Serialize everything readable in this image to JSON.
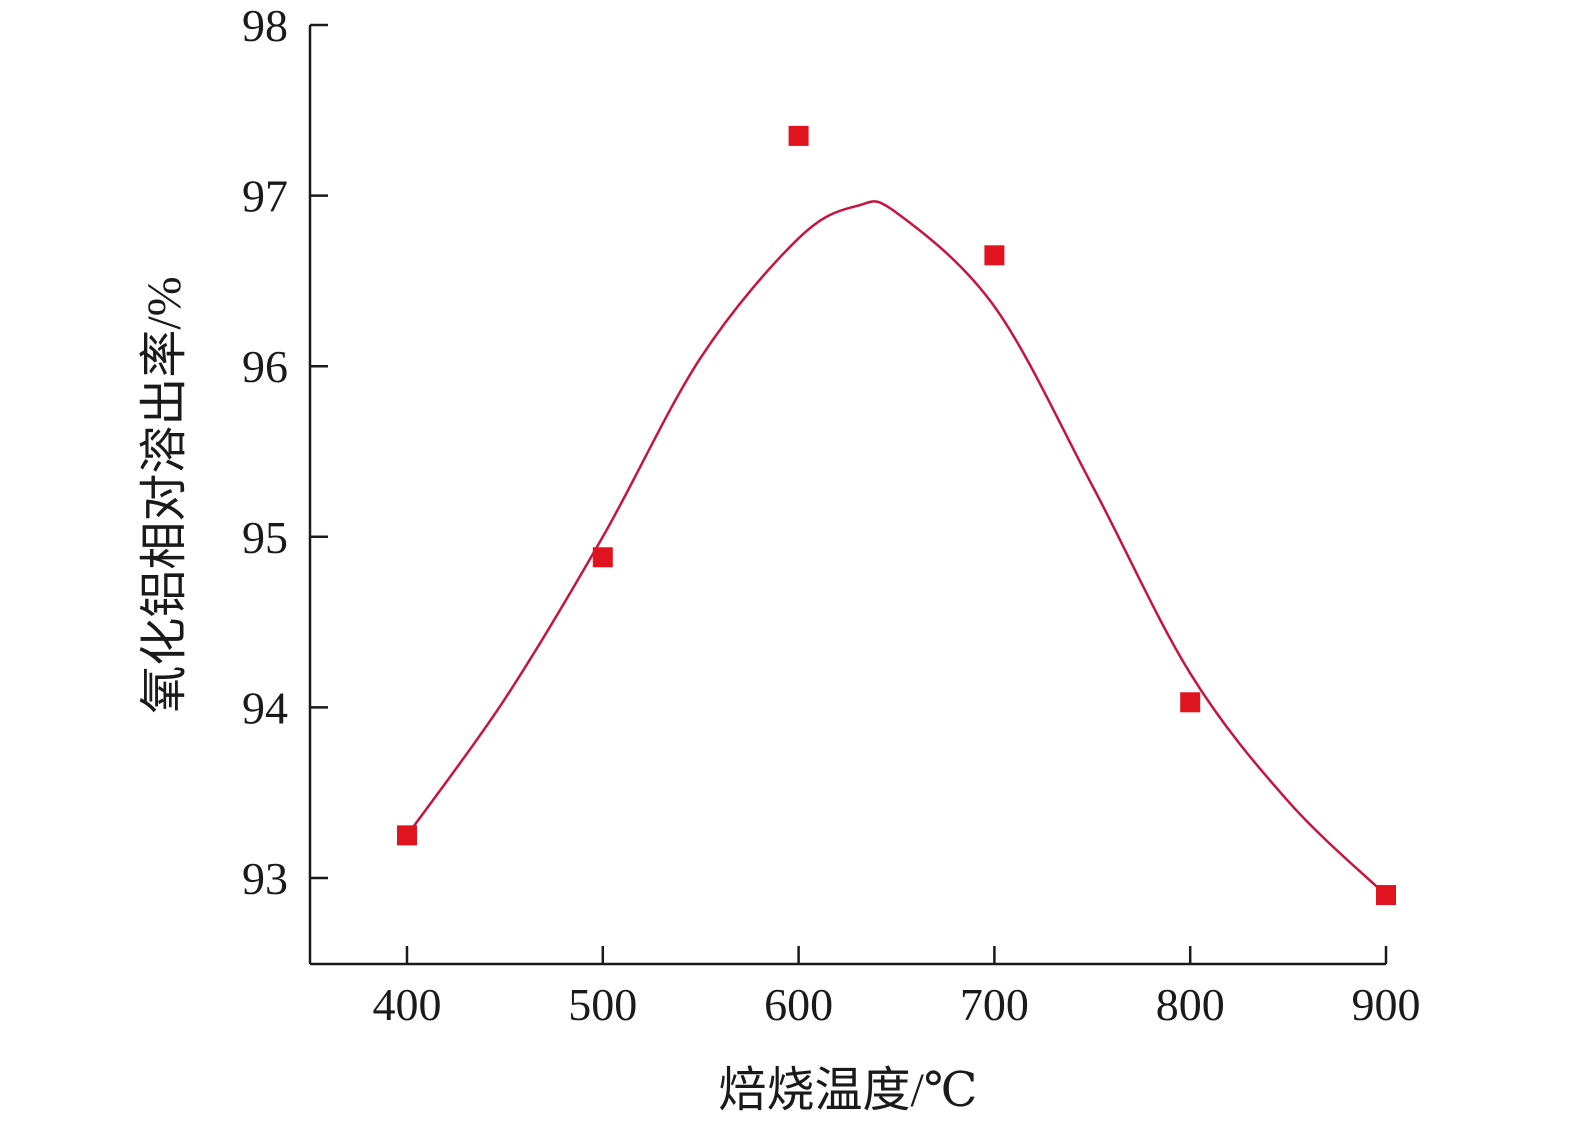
{
  "chart_data": {
    "type": "scatter",
    "xlabel": "焙烧温度/℃",
    "ylabel": "氧化铝相对溶出率/%",
    "xlim": [
      350,
      900
    ],
    "ylim": [
      92.5,
      98
    ],
    "x_ticks": [
      400,
      500,
      600,
      700,
      800,
      900
    ],
    "y_ticks": [
      93,
      94,
      95,
      96,
      97,
      98
    ],
    "grid": false,
    "legend": "none",
    "series": [
      {
        "marker": "square",
        "color": "#e0141e",
        "x": [
          400,
          500,
          600,
          700,
          800,
          900
        ],
        "y": [
          93.25,
          94.88,
          97.35,
          96.65,
          94.03,
          92.9
        ]
      },
      {
        "style": "smooth-line",
        "color": "#c8143c",
        "x": [
          400,
          450,
          500,
          550,
          600,
          630,
          650,
          700,
          750,
          800,
          850,
          900
        ],
        "y": [
          93.25,
          94.05,
          95.0,
          96.05,
          96.75,
          96.94,
          96.9,
          96.35,
          95.3,
          94.2,
          93.45,
          92.9
        ]
      }
    ]
  }
}
